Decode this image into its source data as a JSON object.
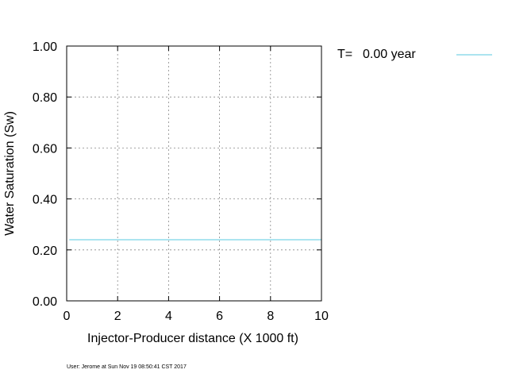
{
  "chart_data": {
    "type": "line",
    "xlabel": "Injector-Producer distance (X 1000 ft)",
    "ylabel": "Water Saturation (Sw)",
    "xlim": [
      0,
      10
    ],
    "ylim": [
      0,
      1
    ],
    "x_ticks": [
      0,
      2,
      4,
      6,
      8,
      10
    ],
    "x_tick_labels": [
      "0",
      "2",
      "4",
      "6",
      "8",
      "10"
    ],
    "y_ticks": [
      0,
      0.2,
      0.4,
      0.6,
      0.8,
      1.0
    ],
    "y_tick_labels": [
      "0.00",
      "0.20",
      "0.40",
      "0.60",
      "0.80",
      "1.00"
    ],
    "grid": true,
    "legend_position": "outside-right-top",
    "legend": {
      "label": "T=",
      "value": "0.00 year"
    },
    "series": [
      {
        "name": "T= 0.00 year",
        "color": "#5ac8e0",
        "x": [
          0.1,
          10
        ],
        "y": [
          0.24,
          0.24
        ]
      }
    ]
  },
  "footer": {
    "text": "User: Jerome at Sun Nov 19 08:50:41 CST 2017"
  }
}
